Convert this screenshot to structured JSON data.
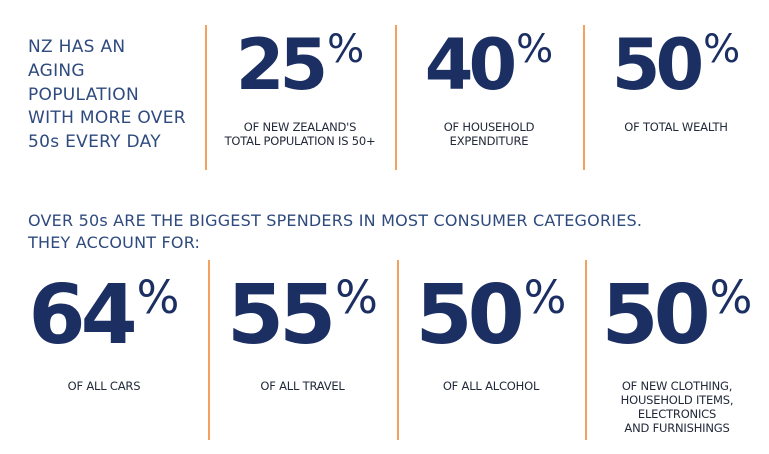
{
  "intro": [
    "NZ HAS AN",
    "AGING",
    "POPULATION",
    "WITH MORE OVER",
    "50s EVERY DAY"
  ],
  "top_stats": [
    {
      "number": 25,
      "unit": "%",
      "caption": [
        "OF NEW ZEALAND'S",
        "TOTAL POPULATION IS 50+"
      ]
    },
    {
      "number": 40,
      "unit": "%",
      "caption": [
        "OF HOUSEHOLD",
        "EXPENDITURE"
      ]
    },
    {
      "number": 50,
      "unit": "%",
      "caption": [
        "OF TOTAL WEALTH"
      ]
    }
  ],
  "section_heading": [
    "OVER 50s ARE THE BIGGEST SPENDERS IN MOST CONSUMER CATEGORIES.",
    "THEY ACCOUNT FOR:"
  ],
  "bottom_stats": [
    {
      "number": 64,
      "unit": "%",
      "caption": [
        "OF ALL CARS"
      ]
    },
    {
      "number": 55,
      "unit": "%",
      "caption": [
        "OF ALL TRAVEL"
      ]
    },
    {
      "number": 50,
      "unit": "%",
      "caption": [
        "OF ALL ALCOHOL"
      ]
    },
    {
      "number": 50,
      "unit": "%",
      "caption": [
        "OF NEW CLOTHING,",
        "HOUSEHOLD ITEMS,",
        "ELECTRONICS",
        "AND FURNISHINGS"
      ]
    }
  ]
}
